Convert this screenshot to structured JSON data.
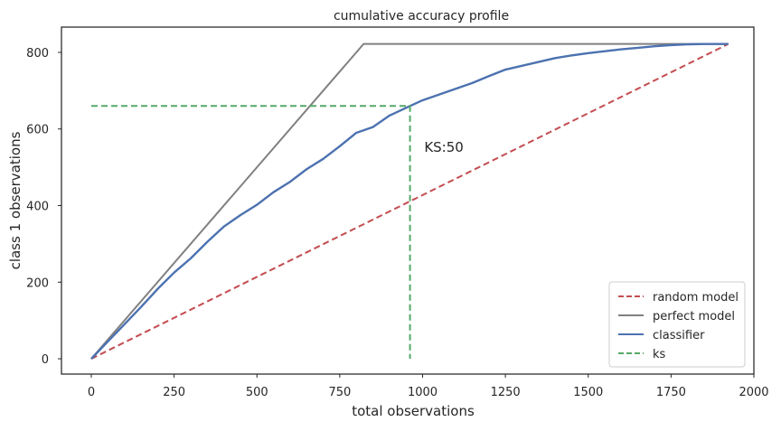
{
  "chart_data": {
    "type": "line",
    "title": "cumulative accuracy profile",
    "xlabel": "total observations",
    "ylabel": "class 1 observations",
    "xlim": [
      -90,
      2000
    ],
    "ylim": [
      -40,
      866
    ],
    "xticks": [
      0,
      250,
      500,
      750,
      1000,
      1250,
      1500,
      1750,
      2000
    ],
    "yticks": [
      0,
      200,
      400,
      600,
      800
    ],
    "grid": false,
    "legend_position": "bottom-right",
    "annotation": {
      "text": "KS:50",
      "x": 1005,
      "y": 540
    },
    "series": [
      {
        "name": "random model",
        "color": "#c44e52",
        "style": "dashed",
        "x": [
          0,
          1923
        ],
        "y": [
          0,
          822
        ]
      },
      {
        "name": "perfect model",
        "color": "#808080",
        "style": "solid",
        "x": [
          0,
          822,
          1923
        ],
        "y": [
          0,
          822,
          822
        ]
      },
      {
        "name": "classifier",
        "color": "#4c72b0",
        "style": "solid",
        "x": [
          0,
          50,
          100,
          150,
          200,
          250,
          300,
          350,
          400,
          450,
          500,
          550,
          600,
          650,
          700,
          750,
          800,
          850,
          900,
          962,
          1000,
          1050,
          1100,
          1150,
          1200,
          1250,
          1300,
          1350,
          1400,
          1450,
          1500,
          1550,
          1600,
          1650,
          1700,
          1750,
          1800,
          1850,
          1923
        ],
        "y": [
          0,
          45,
          90,
          135,
          182,
          225,
          262,
          305,
          345,
          375,
          402,
          435,
          462,
          495,
          522,
          555,
          590,
          605,
          635,
          660,
          675,
          690,
          705,
          720,
          738,
          755,
          765,
          775,
          785,
          792,
          798,
          803,
          808,
          812,
          816,
          819,
          821,
          822,
          822
        ]
      },
      {
        "name": "ks",
        "color": "#55a868",
        "style": "dashed",
        "x": [
          0,
          962,
          962
        ],
        "y": [
          660,
          660,
          0
        ]
      }
    ]
  }
}
